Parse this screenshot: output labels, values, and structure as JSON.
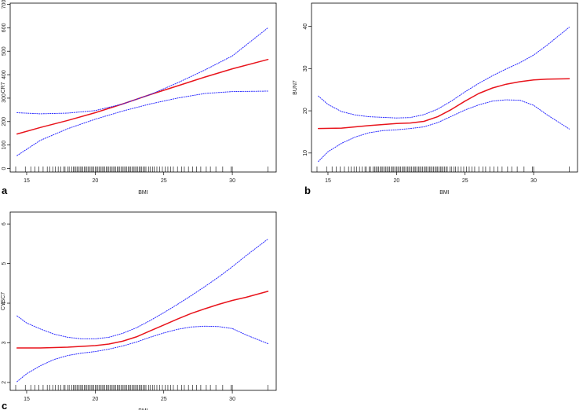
{
  "chart_data": [
    {
      "panel": "a",
      "type": "line",
      "xlabel": "BMI",
      "ylabel": "CR7",
      "xlim": [
        13.8,
        33.2
      ],
      "ylim": [
        -15,
        705
      ],
      "xticks": [
        15,
        20,
        25,
        30
      ],
      "yticks": [
        0,
        100,
        200,
        300,
        400,
        500,
        600,
        700
      ],
      "colors": {
        "fit": "#e8141c",
        "ci": "#2b2bff",
        "axis": "#000000"
      },
      "series": [
        {
          "role": "fit",
          "style": "solid",
          "x": [
            14.3,
            16,
            18,
            20,
            22,
            24,
            26,
            28,
            30,
            32.6
          ],
          "y": [
            147,
            175,
            205,
            238,
            275,
            315,
            352,
            390,
            425,
            465
          ]
        },
        {
          "role": "ci-upper",
          "style": "dotted",
          "x": [
            14.3,
            16,
            18,
            20,
            22,
            24,
            26,
            28,
            30,
            32.6
          ],
          "y": [
            238,
            233,
            236,
            247,
            275,
            315,
            365,
            420,
            480,
            600
          ]
        },
        {
          "role": "ci-lower",
          "style": "dotted",
          "x": [
            14.3,
            16,
            18,
            20,
            22,
            24,
            26,
            28,
            30,
            32.6
          ],
          "y": [
            55,
            120,
            170,
            210,
            245,
            275,
            300,
            320,
            328,
            330
          ]
        }
      ]
    },
    {
      "panel": "b",
      "type": "line",
      "xlabel": "BMI",
      "ylabel": "BUN7",
      "xlim": [
        13.8,
        33.2
      ],
      "ylim": [
        5.5,
        45.5
      ],
      "xticks": [
        15,
        20,
        25,
        30
      ],
      "yticks": [
        10,
        20,
        30,
        40
      ],
      "colors": {
        "fit": "#e8141c",
        "ci": "#2b2bff",
        "axis": "#000000"
      },
      "series": [
        {
          "role": "fit",
          "style": "solid",
          "x": [
            14.3,
            16,
            18,
            20,
            21,
            22,
            23,
            24,
            25,
            26,
            27,
            28,
            29,
            30,
            31,
            32.6
          ],
          "y": [
            15.8,
            15.9,
            16.5,
            17,
            17.1,
            17.5,
            18.6,
            20.3,
            22.3,
            24.1,
            25.4,
            26.3,
            26.9,
            27.3,
            27.5,
            27.6
          ]
        },
        {
          "role": "ci-upper",
          "style": "dotted",
          "x": [
            14.3,
            15,
            16,
            17,
            18,
            20,
            21,
            22,
            23,
            24,
            25,
            26,
            27,
            28,
            29,
            30,
            31,
            32.6
          ],
          "y": [
            23.5,
            21.5,
            19.8,
            19,
            18.6,
            18.3,
            18.4,
            19.1,
            20.4,
            22.3,
            24.5,
            26.5,
            28.3,
            29.9,
            31.4,
            33.2,
            35.6,
            39.8
          ]
        },
        {
          "role": "ci-lower",
          "style": "dotted",
          "x": [
            14.3,
            15,
            16,
            17,
            18,
            19,
            20,
            21,
            22,
            23,
            24,
            25,
            26,
            27,
            28,
            29,
            30,
            31,
            32.6
          ],
          "y": [
            8,
            10.3,
            12.3,
            13.8,
            14.8,
            15.3,
            15.5,
            15.8,
            16.2,
            17.2,
            18.7,
            20.2,
            21.4,
            22.3,
            22.6,
            22.5,
            21.3,
            19,
            15.7
          ]
        }
      ]
    },
    {
      "panel": "c",
      "type": "line",
      "xlabel": "BMI",
      "ylabel": "CYSC7",
      "xlim": [
        13.8,
        33.2
      ],
      "ylim": [
        1.8,
        6.3
      ],
      "xticks": [
        15,
        20,
        25,
        30
      ],
      "yticks": [
        2,
        3,
        4,
        5,
        6
      ],
      "colors": {
        "fit": "#e8141c",
        "ci": "#2b2bff",
        "axis": "#000000"
      },
      "series": [
        {
          "role": "fit",
          "style": "solid",
          "x": [
            14.3,
            16,
            18,
            20,
            21,
            22,
            23,
            24,
            25,
            26,
            27,
            28,
            29,
            30,
            31,
            32.6
          ],
          "y": [
            2.87,
            2.87,
            2.89,
            2.93,
            2.97,
            3.04,
            3.15,
            3.3,
            3.45,
            3.6,
            3.74,
            3.86,
            3.97,
            4.07,
            4.15,
            4.3
          ]
        },
        {
          "role": "ci-upper",
          "style": "dotted",
          "x": [
            14.3,
            15,
            16,
            17,
            18,
            19,
            20,
            21,
            22,
            23,
            24,
            25,
            26,
            27,
            28,
            29,
            30,
            31,
            32.6
          ],
          "y": [
            3.68,
            3.5,
            3.35,
            3.22,
            3.14,
            3.1,
            3.1,
            3.14,
            3.24,
            3.38,
            3.56,
            3.76,
            3.97,
            4.19,
            4.42,
            4.66,
            4.92,
            5.2,
            5.62
          ]
        },
        {
          "role": "ci-lower",
          "style": "dotted",
          "x": [
            14.3,
            15,
            16,
            17,
            18,
            19,
            20,
            21,
            22,
            23,
            24,
            25,
            26,
            27,
            28,
            29,
            30,
            31,
            32.6
          ],
          "y": [
            2.02,
            2.22,
            2.42,
            2.58,
            2.68,
            2.74,
            2.78,
            2.84,
            2.92,
            3.02,
            3.14,
            3.25,
            3.34,
            3.4,
            3.42,
            3.41,
            3.36,
            3.2,
            2.98
          ]
        }
      ]
    }
  ],
  "rug_x": [
    14.2,
    14.9,
    15.3,
    15.6,
    15.9,
    16.2,
    16.5,
    16.7,
    16.9,
    17.1,
    17.3,
    17.5,
    17.7,
    17.8,
    18.0,
    18.1,
    18.3,
    18.4,
    18.5,
    18.6,
    18.7,
    18.8,
    18.9,
    19.0,
    19.1,
    19.2,
    19.3,
    19.4,
    19.5,
    19.6,
    19.7,
    19.8,
    19.9,
    20.0,
    20.1,
    20.2,
    20.3,
    20.4,
    20.5,
    20.6,
    20.7,
    20.8,
    20.9,
    21.0,
    21.1,
    21.2,
    21.3,
    21.4,
    21.5,
    21.6,
    21.7,
    21.8,
    21.9,
    22.0,
    22.1,
    22.2,
    22.3,
    22.4,
    22.5,
    22.6,
    22.7,
    22.8,
    22.9,
    23.0,
    23.1,
    23.2,
    23.3,
    23.4,
    23.5,
    23.6,
    23.7,
    23.9,
    24.0,
    24.2,
    24.3,
    24.5,
    24.7,
    24.9,
    25.1,
    25.3,
    25.5,
    25.7,
    26.0,
    26.3,
    26.5,
    26.8,
    27.1,
    27.4,
    27.7,
    28.1,
    28.4,
    28.8,
    29.3,
    29.9,
    30.0,
    32.6
  ]
}
